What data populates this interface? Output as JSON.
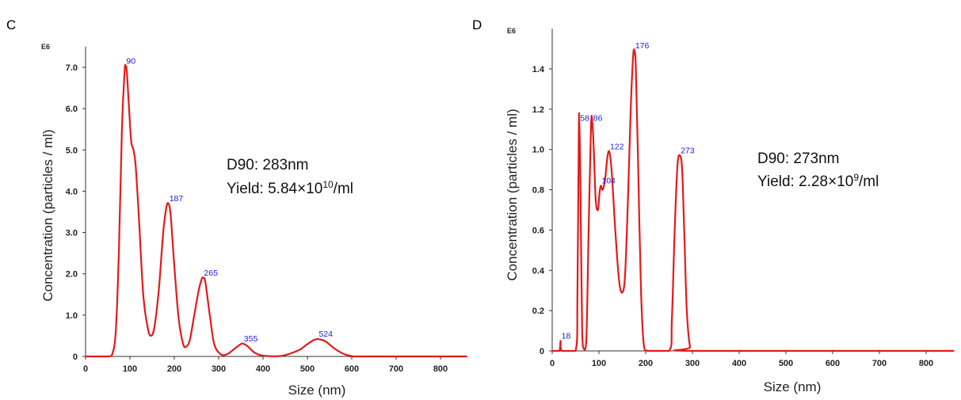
{
  "chart_data": [
    {
      "type": "line",
      "panel_label": "C",
      "exponent_label": "E6",
      "xlabel": "Size (nm)",
      "ylabel": "Concentration (particles / ml)",
      "xlim": [
        0,
        860
      ],
      "ylim": [
        0,
        7.5
      ],
      "x_ticks": [
        "0",
        "100",
        "200",
        "300",
        "400",
        "500",
        "600",
        "700",
        "800"
      ],
      "y_ticks": [
        "0",
        "1.0",
        "2.0",
        "3.0",
        "4.0",
        "5.0",
        "6.0",
        "7.0"
      ],
      "y_tick_values": [
        0,
        1,
        2,
        3,
        4,
        5,
        6,
        7
      ],
      "series_color": "#e41a1a",
      "peak_label_color": "#1a1adc",
      "series": [
        {
          "name": "",
          "points": [
            [
              0,
              0
            ],
            [
              50,
              0
            ],
            [
              60,
              0.05
            ],
            [
              68,
              0.6
            ],
            [
              75,
              2.5
            ],
            [
              82,
              5.5
            ],
            [
              88,
              6.9
            ],
            [
              90,
              7.03
            ],
            [
              93,
              6.9
            ],
            [
              98,
              6.0
            ],
            [
              103,
              5.2
            ],
            [
              108,
              5.0
            ],
            [
              113,
              4.6
            ],
            [
              120,
              3.4
            ],
            [
              130,
              1.5
            ],
            [
              140,
              0.7
            ],
            [
              147,
              0.5
            ],
            [
              155,
              0.7
            ],
            [
              165,
              1.6
            ],
            [
              175,
              3.0
            ],
            [
              182,
              3.6
            ],
            [
              187,
              3.7
            ],
            [
              192,
              3.4
            ],
            [
              200,
              2.2
            ],
            [
              210,
              0.9
            ],
            [
              220,
              0.3
            ],
            [
              227,
              0.24
            ],
            [
              235,
              0.4
            ],
            [
              245,
              1.0
            ],
            [
              255,
              1.6
            ],
            [
              262,
              1.88
            ],
            [
              265,
              1.9
            ],
            [
              270,
              1.8
            ],
            [
              280,
              1.0
            ],
            [
              290,
              0.3
            ],
            [
              305,
              0.05
            ],
            [
              320,
              0.06
            ],
            [
              335,
              0.18
            ],
            [
              350,
              0.3
            ],
            [
              355,
              0.31
            ],
            [
              365,
              0.25
            ],
            [
              380,
              0.1
            ],
            [
              400,
              0.02
            ],
            [
              440,
              0.01
            ],
            [
              480,
              0.15
            ],
            [
              500,
              0.3
            ],
            [
              515,
              0.4
            ],
            [
              524,
              0.42
            ],
            [
              540,
              0.37
            ],
            [
              560,
              0.2
            ],
            [
              580,
              0.07
            ],
            [
              600,
              0.01
            ],
            [
              620,
              0
            ],
            [
              860,
              0
            ]
          ]
        }
      ],
      "peak_labels": [
        {
          "x": 90,
          "y": 7.03,
          "text": "90"
        },
        {
          "x": 187,
          "y": 3.7,
          "text": "187"
        },
        {
          "x": 265,
          "y": 1.9,
          "text": "265"
        },
        {
          "x": 355,
          "y": 0.31,
          "text": "355"
        },
        {
          "x": 524,
          "y": 0.42,
          "text": "524"
        }
      ],
      "annotation": {
        "line1": "D90: 283nm",
        "line2_prefix": "Yield: 5.84×10",
        "line2_exponent": "10",
        "line2_suffix": "/ml"
      }
    },
    {
      "type": "line",
      "panel_label": "D",
      "exponent_label": "E6",
      "xlabel": "Size (nm)",
      "ylabel": "Concentration (particles / ml)",
      "xlim": [
        0,
        860
      ],
      "ylim": [
        0,
        1.6
      ],
      "x_ticks": [
        "0",
        "100",
        "200",
        "300",
        "400",
        "500",
        "600",
        "700",
        "800"
      ],
      "y_ticks": [
        "0",
        "0.2",
        "0.4",
        "0.6",
        "0.8",
        "1.0",
        "1.2",
        "1.4"
      ],
      "y_tick_values": [
        0,
        0.2,
        0.4,
        0.6,
        0.8,
        1.0,
        1.2,
        1.4
      ],
      "series_color": "#e41a1a",
      "peak_label_color": "#1a1adc",
      "series": [
        {
          "name": "",
          "points": [
            [
              0,
              0
            ],
            [
              15,
              0
            ],
            [
              18,
              0.05
            ],
            [
              21,
              0
            ],
            [
              50,
              0
            ],
            [
              54,
              0.3
            ],
            [
              57,
              1.1
            ],
            [
              58,
              1.13
            ],
            [
              60,
              0.9
            ],
            [
              64,
              0.1
            ],
            [
              68,
              0.01
            ],
            [
              73,
              0.05
            ],
            [
              78,
              0.6
            ],
            [
              83,
              1.12
            ],
            [
              86,
              1.13
            ],
            [
              89,
              1.0
            ],
            [
              93,
              0.75
            ],
            [
              98,
              0.7
            ],
            [
              101,
              0.78
            ],
            [
              104,
              0.82
            ],
            [
              108,
              0.8
            ],
            [
              113,
              0.85
            ],
            [
              118,
              0.96
            ],
            [
              122,
              0.99
            ],
            [
              127,
              0.9
            ],
            [
              135,
              0.6
            ],
            [
              143,
              0.35
            ],
            [
              150,
              0.29
            ],
            [
              156,
              0.38
            ],
            [
              162,
              0.75
            ],
            [
              168,
              1.2
            ],
            [
              173,
              1.46
            ],
            [
              176,
              1.49
            ],
            [
              179,
              1.4
            ],
            [
              184,
              0.9
            ],
            [
              190,
              0.3
            ],
            [
              196,
              0.03
            ],
            [
              205,
              0
            ],
            [
              250,
              0
            ],
            [
              256,
              0.15
            ],
            [
              262,
              0.6
            ],
            [
              268,
              0.92
            ],
            [
              273,
              0.97
            ],
            [
              278,
              0.9
            ],
            [
              283,
              0.55
            ],
            [
              288,
              0.2
            ],
            [
              295,
              0.02
            ],
            [
              305,
              0
            ],
            [
              860,
              0
            ]
          ]
        }
      ],
      "peak_labels": [
        {
          "x": 18,
          "y": 0.05,
          "text": "18"
        },
        {
          "x": 58,
          "y": 1.13,
          "text": "58"
        },
        {
          "x": 86,
          "y": 1.13,
          "text": "86"
        },
        {
          "x": 104,
          "y": 0.82,
          "text": "104"
        },
        {
          "x": 122,
          "y": 0.99,
          "text": "122"
        },
        {
          "x": 176,
          "y": 1.49,
          "text": "176"
        },
        {
          "x": 273,
          "y": 0.97,
          "text": "273"
        }
      ],
      "annotation": {
        "line1": "D90: 273nm",
        "line2_prefix": "Yield: 2.28×10",
        "line2_exponent": "9",
        "line2_suffix": "/ml"
      }
    }
  ]
}
